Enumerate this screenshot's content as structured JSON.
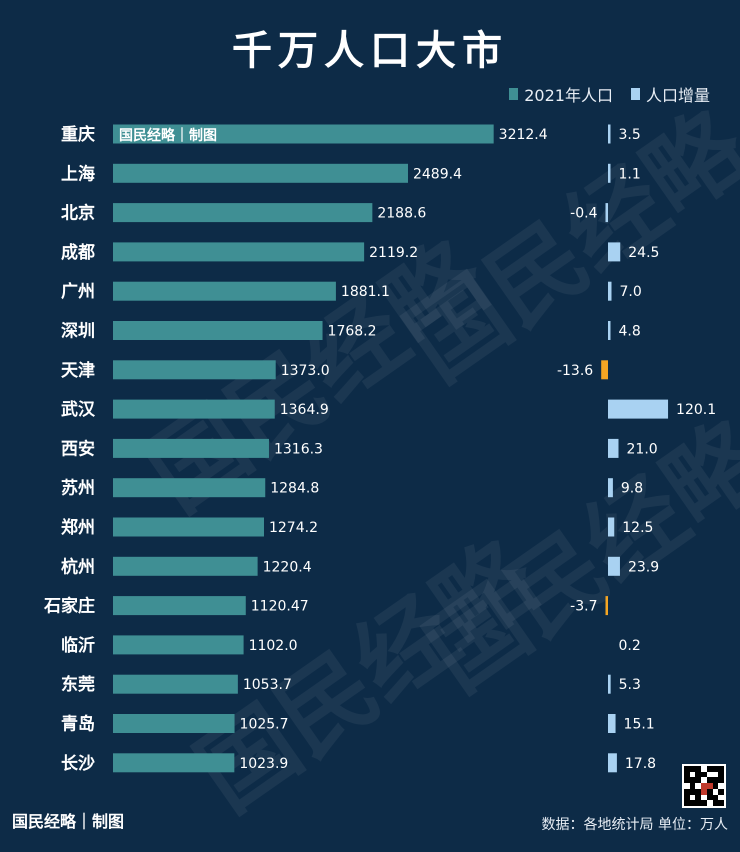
{
  "title": "千万人口大市",
  "legend": {
    "population_label": "2021年人口",
    "increase_label": "人口增量"
  },
  "bar_watermark": "国民经略｜制图",
  "watermark_text": "国民经略",
  "footer": {
    "credit": "国民经略｜制图",
    "source": "数据：各地统计局 单位：万人"
  },
  "colors": {
    "background": "#0d2b47",
    "population_bar": "#3f8f94",
    "increase_bar": "#a9d2f2",
    "negative_bar": "#f5a623"
  },
  "chart_data": {
    "type": "bar",
    "orientation": "horizontal",
    "categories": [
      "重庆",
      "上海",
      "北京",
      "成都",
      "广州",
      "深圳",
      "天津",
      "武汉",
      "西安",
      "苏州",
      "郑州",
      "杭州",
      "石家庄",
      "临沂",
      "东莞",
      "青岛",
      "长沙"
    ],
    "series": [
      {
        "name": "2021年人口",
        "values": [
          3212.4,
          2489.4,
          2188.6,
          2119.2,
          1881.1,
          1768.2,
          1373.0,
          1364.9,
          1316.3,
          1284.8,
          1274.2,
          1220.4,
          1120.47,
          1102.0,
          1053.7,
          1025.7,
          1023.9
        ],
        "labels": [
          "3212.4",
          "2489.4",
          "2188.6",
          "2119.2",
          "1881.1",
          "1768.2",
          "1373.0",
          "1364.9",
          "1316.3",
          "1284.8",
          "1274.2",
          "1220.4",
          "1120.47",
          "1102.0",
          "1053.7",
          "1025.7",
          "1023.9"
        ]
      },
      {
        "name": "人口增量",
        "values": [
          3.5,
          1.1,
          -0.4,
          24.5,
          7.0,
          4.8,
          -13.6,
          120.1,
          21.0,
          9.8,
          12.5,
          23.9,
          -3.7,
          0.2,
          5.3,
          15.1,
          17.8
        ],
        "labels": [
          "3.5",
          "1.1",
          "-0.4",
          "24.5",
          "7.0",
          "4.8",
          "-13.6",
          "120.1",
          "21.0",
          "9.8",
          "12.5",
          "23.9",
          "-3.7",
          "0.2",
          "5.3",
          "15.1",
          "17.8"
        ]
      }
    ],
    "unit": "万人",
    "legend_position": "top-right",
    "grid": false
  }
}
